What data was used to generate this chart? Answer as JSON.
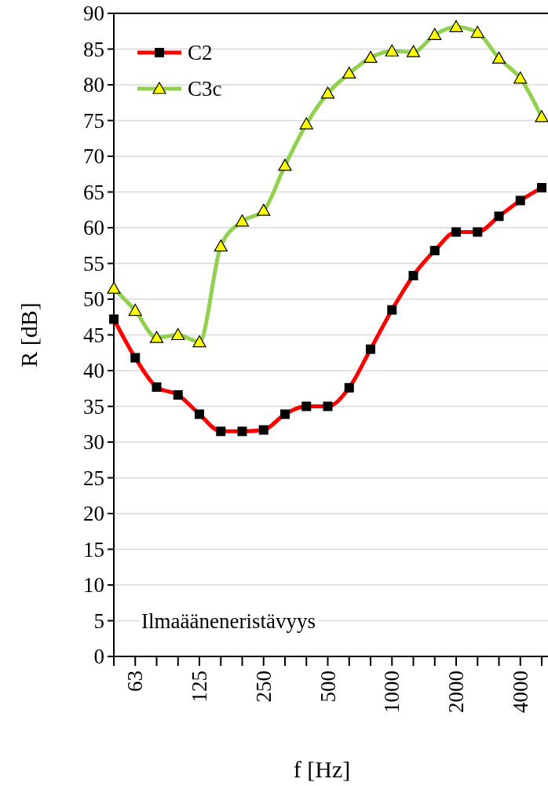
{
  "chart_data": {
    "type": "line",
    "xlabel": "f [Hz]",
    "ylabel": "R [dB]",
    "categories": [
      null,
      "63",
      null,
      null,
      "125",
      null,
      null,
      "250",
      null,
      null,
      "500",
      null,
      null,
      "1000",
      null,
      null,
      "2000",
      null,
      null,
      "4000",
      null
    ],
    "series": [
      {
        "name": "C2",
        "color": "#ff0000",
        "marker": "square",
        "values": [
          47.2,
          41.8,
          37.7,
          36.6,
          33.9,
          31.5,
          31.5,
          31.7,
          33.9,
          35,
          35,
          37.6,
          43,
          48.5,
          53.3,
          56.8,
          59.4,
          59.4,
          61.6,
          63.8,
          65.6
        ]
      },
      {
        "name": "C3c",
        "color": "#92d050",
        "marker": "triangle",
        "values": [
          51.5,
          48.4,
          44.6,
          45,
          44,
          57.4,
          60.9,
          62.4,
          68.7,
          74.5,
          78.8,
          81.6,
          83.8,
          84.7,
          84.6,
          87,
          88.1,
          87.3,
          83.7,
          80.9,
          75.5
        ]
      }
    ],
    "ylim": [
      0,
      90
    ],
    "yticks": [
      0,
      5,
      10,
      15,
      20,
      25,
      30,
      35,
      40,
      45,
      50,
      55,
      60,
      65,
      70,
      75,
      80,
      85,
      90
    ],
    "grid": "y",
    "legend": "top left",
    "line_style": "solid",
    "annotations": [
      "Ilmaääneneristävyys"
    ]
  }
}
